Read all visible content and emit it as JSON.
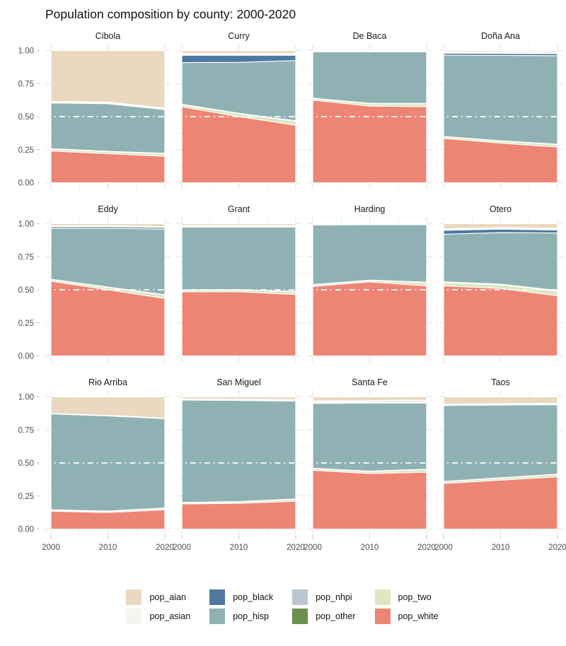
{
  "page": {
    "title": "Population composition by county: 2000-2020"
  },
  "chart_data": {
    "type": "area",
    "variant": "stacked-proportional-faceted",
    "title": "Population composition by county: 2000-2020",
    "x": [
      2000,
      2010,
      2020
    ],
    "xtick_labels": [
      "2000",
      "2010",
      "2020"
    ],
    "yticks": [
      1.0,
      0.75,
      0.5,
      0.25,
      0.0
    ],
    "ytick_labels": [
      "1.00",
      "0.75",
      "0.50",
      "0.25",
      "0.00"
    ],
    "ylim": [
      0,
      1
    ],
    "grid": "on",
    "ref_line_y": 0.5,
    "legend_position": "bottom",
    "stack_order_bottom_to_top": [
      "pop_white",
      "pop_two",
      "pop_other",
      "pop_nhpi",
      "pop_hisp",
      "pop_black",
      "pop_asian",
      "pop_aian"
    ],
    "legend_order": [
      "pop_aian",
      "pop_asian",
      "pop_black",
      "pop_hisp",
      "pop_nhpi",
      "pop_other",
      "pop_two",
      "pop_white"
    ],
    "colors": {
      "pop_aian": "#ead8c0",
      "pop_asian": "#f4f4f1",
      "pop_black": "#4d79a2",
      "pop_hisp": "#8fb1b4",
      "pop_nhpi": "#bac6d1",
      "pop_other": "#6a8f4e",
      "pop_two": "#dde7c2",
      "pop_white": "#ed8575"
    },
    "facets": [
      {
        "name": "Cibola",
        "series": {
          "pop_white": [
            0.24,
            0.22,
            0.2
          ],
          "pop_two": [
            0.015,
            0.015,
            0.02
          ],
          "pop_other": [
            0.002,
            0.002,
            0.002
          ],
          "pop_nhpi": [
            0.001,
            0.001,
            0.001
          ],
          "pop_hisp": [
            0.345,
            0.36,
            0.33
          ],
          "pop_black": [
            0.005,
            0.005,
            0.005
          ],
          "pop_asian": [
            0.007,
            0.007,
            0.007
          ],
          "pop_aian": [
            0.385,
            0.39,
            0.435
          ]
        }
      },
      {
        "name": "Curry",
        "series": {
          "pop_white": [
            0.575,
            0.5,
            0.435
          ],
          "pop_two": [
            0.015,
            0.022,
            0.03
          ],
          "pop_other": [
            0.002,
            0.002,
            0.002
          ],
          "pop_nhpi": [
            0.002,
            0.002,
            0.002
          ],
          "pop_hisp": [
            0.315,
            0.385,
            0.455
          ],
          "pop_black": [
            0.055,
            0.053,
            0.04
          ],
          "pop_asian": [
            0.015,
            0.015,
            0.015
          ],
          "pop_aian": [
            0.021,
            0.021,
            0.021
          ]
        }
      },
      {
        "name": "De Baca",
        "series": {
          "pop_white": [
            0.625,
            0.58,
            0.575
          ],
          "pop_two": [
            0.012,
            0.018,
            0.022
          ],
          "pop_other": [
            0.002,
            0.002,
            0.002
          ],
          "pop_nhpi": [
            0.001,
            0.001,
            0.001
          ],
          "pop_hisp": [
            0.35,
            0.39,
            0.39
          ],
          "pop_black": [
            0.003,
            0.003,
            0.003
          ],
          "pop_asian": [
            0.004,
            0.003,
            0.004
          ],
          "pop_aian": [
            0.003,
            0.003,
            0.003
          ]
        }
      },
      {
        "name": "Doña Ana",
        "series": {
          "pop_white": [
            0.335,
            0.3,
            0.27
          ],
          "pop_two": [
            0.012,
            0.015,
            0.018
          ],
          "pop_other": [
            0.002,
            0.002,
            0.002
          ],
          "pop_nhpi": [
            0.001,
            0.001,
            0.001
          ],
          "pop_hisp": [
            0.615,
            0.645,
            0.67
          ],
          "pop_black": [
            0.015,
            0.015,
            0.015
          ],
          "pop_asian": [
            0.012,
            0.014,
            0.015
          ],
          "pop_aian": [
            0.008,
            0.008,
            0.009
          ]
        }
      },
      {
        "name": "Eddy",
        "series": {
          "pop_white": [
            0.565,
            0.5,
            0.435
          ],
          "pop_two": [
            0.012,
            0.018,
            0.025
          ],
          "pop_other": [
            0.002,
            0.002,
            0.002
          ],
          "pop_nhpi": [
            0.001,
            0.001,
            0.001
          ],
          "pop_hisp": [
            0.385,
            0.445,
            0.495
          ],
          "pop_black": [
            0.012,
            0.012,
            0.012
          ],
          "pop_asian": [
            0.006,
            0.007,
            0.008
          ],
          "pop_aian": [
            0.017,
            0.015,
            0.022
          ]
        }
      },
      {
        "name": "Grant",
        "series": {
          "pop_white": [
            0.485,
            0.485,
            0.465
          ],
          "pop_two": [
            0.012,
            0.013,
            0.02
          ],
          "pop_other": [
            0.002,
            0.002,
            0.002
          ],
          "pop_nhpi": [
            0.001,
            0.001,
            0.001
          ],
          "pop_hisp": [
            0.475,
            0.474,
            0.487
          ],
          "pop_black": [
            0.005,
            0.005,
            0.005
          ],
          "pop_asian": [
            0.006,
            0.006,
            0.006
          ],
          "pop_aian": [
            0.014,
            0.014,
            0.014
          ]
        }
      },
      {
        "name": "Harding",
        "series": {
          "pop_white": [
            0.525,
            0.56,
            0.53
          ],
          "pop_two": [
            0.012,
            0.01,
            0.025
          ],
          "pop_other": [
            0.002,
            0.002,
            0.002
          ],
          "pop_nhpi": [
            0.001,
            0.001,
            0.001
          ],
          "pop_hisp": [
            0.45,
            0.42,
            0.435
          ],
          "pop_black": [
            0.002,
            0.002,
            0.002
          ],
          "pop_asian": [
            0.003,
            0.003,
            0.003
          ],
          "pop_aian": [
            0.005,
            0.002,
            0.002
          ]
        }
      },
      {
        "name": "Otero",
        "series": {
          "pop_white": [
            0.53,
            0.51,
            0.455
          ],
          "pop_two": [
            0.025,
            0.028,
            0.035
          ],
          "pop_other": [
            0.003,
            0.003,
            0.003
          ],
          "pop_nhpi": [
            0.002,
            0.002,
            0.002
          ],
          "pop_hisp": [
            0.36,
            0.39,
            0.435
          ],
          "pop_black": [
            0.03,
            0.026,
            0.022
          ],
          "pop_asian": [
            0.012,
            0.012,
            0.013
          ],
          "pop_aian": [
            0.038,
            0.029,
            0.035
          ]
        }
      },
      {
        "name": "Rio Arriba",
        "series": {
          "pop_white": [
            0.135,
            0.125,
            0.145
          ],
          "pop_two": [
            0.008,
            0.008,
            0.012
          ],
          "pop_other": [
            0.002,
            0.002,
            0.002
          ],
          "pop_nhpi": [
            0.001,
            0.001,
            0.001
          ],
          "pop_hisp": [
            0.725,
            0.72,
            0.675
          ],
          "pop_black": [
            0.002,
            0.002,
            0.002
          ],
          "pop_asian": [
            0.002,
            0.002,
            0.002
          ],
          "pop_aian": [
            0.125,
            0.14,
            0.161
          ]
        }
      },
      {
        "name": "San Miguel",
        "series": {
          "pop_white": [
            0.19,
            0.195,
            0.21
          ],
          "pop_two": [
            0.008,
            0.01,
            0.015
          ],
          "pop_other": [
            0.002,
            0.002,
            0.002
          ],
          "pop_nhpi": [
            0.001,
            0.001,
            0.001
          ],
          "pop_hisp": [
            0.775,
            0.765,
            0.74
          ],
          "pop_black": [
            0.005,
            0.005,
            0.005
          ],
          "pop_asian": [
            0.005,
            0.005,
            0.006
          ],
          "pop_aian": [
            0.014,
            0.017,
            0.021
          ]
        }
      },
      {
        "name": "Santa Fe",
        "series": {
          "pop_white": [
            0.445,
            0.42,
            0.43
          ],
          "pop_two": [
            0.012,
            0.015,
            0.02
          ],
          "pop_other": [
            0.002,
            0.002,
            0.002
          ],
          "pop_nhpi": [
            0.001,
            0.001,
            0.001
          ],
          "pop_hisp": [
            0.49,
            0.515,
            0.5
          ],
          "pop_black": [
            0.005,
            0.005,
            0.005
          ],
          "pop_asian": [
            0.015,
            0.015,
            0.017
          ],
          "pop_aian": [
            0.03,
            0.027,
            0.025
          ]
        }
      },
      {
        "name": "Taos",
        "series": {
          "pop_white": [
            0.345,
            0.37,
            0.395
          ],
          "pop_two": [
            0.012,
            0.015,
            0.018
          ],
          "pop_other": [
            0.002,
            0.002,
            0.002
          ],
          "pop_nhpi": [
            0.001,
            0.001,
            0.001
          ],
          "pop_hisp": [
            0.575,
            0.55,
            0.525
          ],
          "pop_black": [
            0.003,
            0.003,
            0.003
          ],
          "pop_asian": [
            0.007,
            0.007,
            0.007
          ],
          "pop_aian": [
            0.055,
            0.052,
            0.049
          ]
        }
      }
    ]
  }
}
